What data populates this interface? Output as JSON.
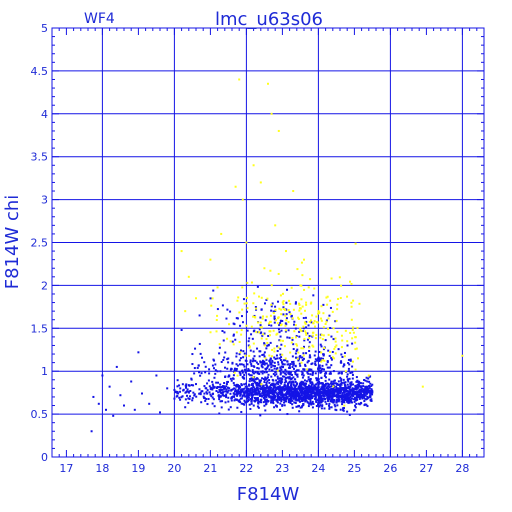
{
  "chart_data": {
    "type": "scatter",
    "title": "lmc_u63s06",
    "subtitle": "WF4",
    "xlabel": "F814W",
    "ylabel": "F814W chi",
    "xlim": [
      16.6,
      28.6
    ],
    "ylim": [
      0,
      5
    ],
    "xticks": [
      17,
      18,
      19,
      20,
      21,
      22,
      23,
      24,
      25,
      26,
      27,
      28
    ],
    "yticks": [
      0,
      0.5,
      1,
      1.5,
      2,
      2.5,
      3,
      3.5,
      4,
      4.5,
      5
    ],
    "ytick_labels": [
      "0",
      "0.5",
      "1",
      "1.5",
      "2",
      "2.5",
      "3",
      "3.5",
      "4",
      "4.5",
      "5"
    ],
    "grid": true,
    "series": [
      {
        "color": "#1414e6",
        "points": [
          [
            17.7,
            0.3
          ],
          [
            17.75,
            0.7
          ],
          [
            17.9,
            0.62
          ],
          [
            18.0,
            0.95
          ],
          [
            18.1,
            0.55
          ],
          [
            18.2,
            0.82
          ],
          [
            18.3,
            0.48
          ],
          [
            18.4,
            1.05
          ],
          [
            18.5,
            0.72
          ],
          [
            18.6,
            0.6
          ],
          [
            18.8,
            0.88
          ],
          [
            18.9,
            0.55
          ],
          [
            19.0,
            1.22
          ],
          [
            19.1,
            0.74
          ],
          [
            19.3,
            0.62
          ],
          [
            19.5,
            0.95
          ],
          [
            19.6,
            0.52
          ],
          [
            19.8,
            0.8
          ],
          [
            20.0,
            0.68
          ],
          [
            20.2,
            1.48
          ],
          [
            20.3,
            0.58
          ],
          [
            20.5,
            1.2
          ],
          [
            20.6,
            0.85
          ],
          [
            20.7,
            1.65
          ]
        ]
      },
      {
        "color": "#ffff1a",
        "points": [
          [
            20.2,
            2.4
          ],
          [
            20.3,
            1.7
          ],
          [
            20.4,
            2.1
          ],
          [
            20.6,
            1.85
          ],
          [
            21.0,
            2.3
          ],
          [
            21.3,
            2.6
          ],
          [
            21.7,
            3.15
          ],
          [
            21.8,
            4.4
          ],
          [
            21.9,
            3.0
          ],
          [
            22.0,
            2.5
          ],
          [
            22.2,
            3.4
          ],
          [
            22.4,
            3.2
          ],
          [
            22.5,
            2.2
          ],
          [
            22.6,
            4.35
          ],
          [
            22.7,
            4.0
          ],
          [
            22.8,
            2.7
          ],
          [
            22.9,
            3.8
          ],
          [
            23.1,
            2.4
          ],
          [
            23.3,
            3.1
          ],
          [
            23.5,
            2.0
          ],
          [
            23.6,
            2.3
          ],
          [
            23.8,
            1.8
          ],
          [
            24.0,
            1.7
          ],
          [
            24.2,
            1.55
          ],
          [
            24.5,
            1.3
          ],
          [
            24.8,
            1.35
          ],
          [
            25.1,
            1.15
          ],
          [
            25.4,
            0.95
          ],
          [
            26.9,
            0.82
          ],
          [
            28.0,
            1.18
          ]
        ]
      }
    ],
    "dense_regions": [
      {
        "color": "#1414e6",
        "x": [
          20.0,
          25.5
        ],
        "y_center": 0.75,
        "y_spread": 0.15,
        "count": 1800,
        "peak_x": 23.8
      },
      {
        "color": "#1414e6",
        "x": [
          20.5,
          25.0
        ],
        "y_center": 1.05,
        "y_spread": 0.22,
        "count": 450,
        "peak_x": 23.0
      },
      {
        "color": "#1414e6",
        "x": [
          21.0,
          24.5
        ],
        "y_center": 1.55,
        "y_spread": 0.35,
        "count": 140,
        "peak_x": 22.8
      },
      {
        "color": "#ffff1a",
        "x": [
          21.0,
          25.2
        ],
        "y_center": 1.55,
        "y_spread": 0.55,
        "count": 260,
        "peak_x": 23.5
      }
    ]
  }
}
